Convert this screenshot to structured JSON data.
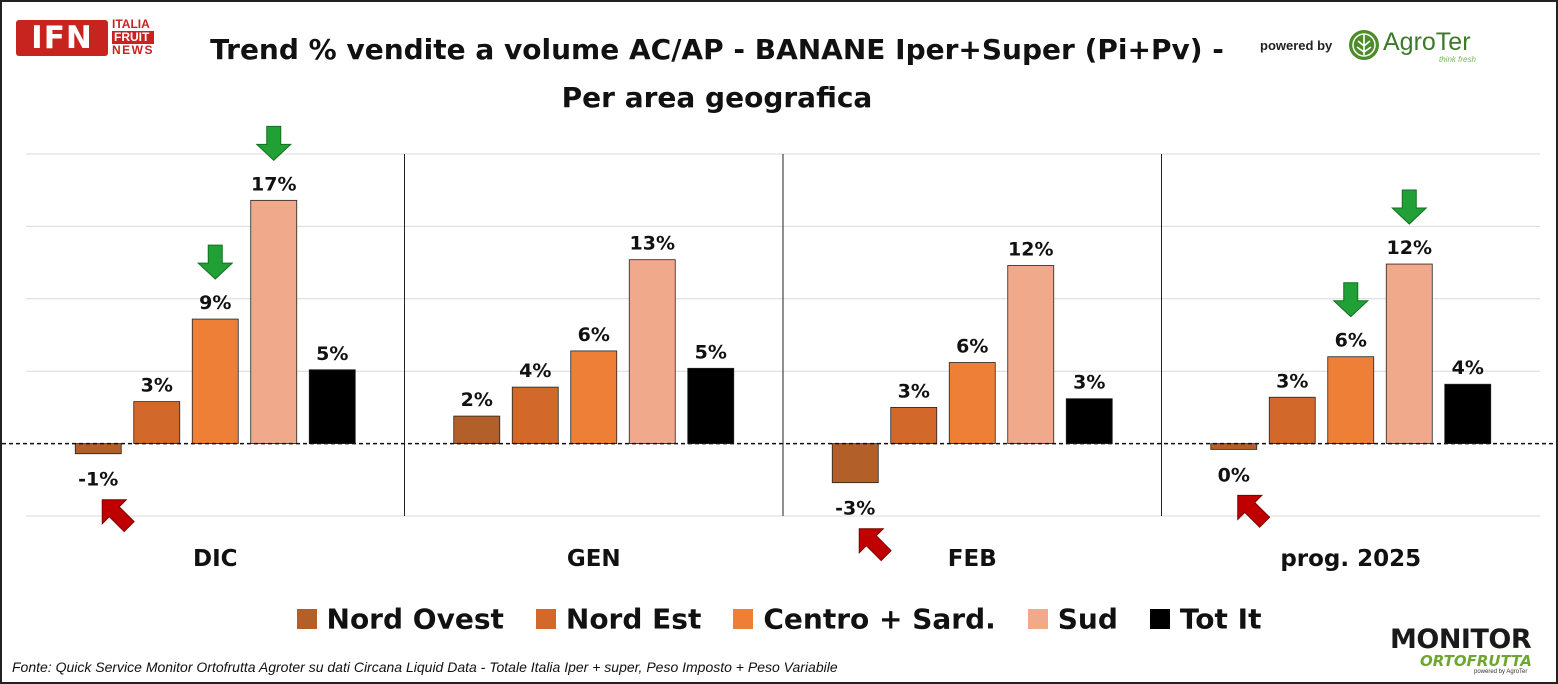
{
  "header": {
    "logo_text": "IFN",
    "logo_subtext": [
      "ITALIA",
      "FRUIT",
      "NEWS"
    ],
    "title_line1": "Trend % vendite a volume AC/AP - BANANE  Iper+Super (Pi+Pv) -",
    "title_line2": "Per area geografica",
    "powered_by": "powered by",
    "agroter_logo": "AgroTer",
    "agroter_tagline": "think fresh"
  },
  "footer": {
    "source": "Fonte: Quick Service Monitor Ortofrutta Agroter su dati Circana Liquid Data - Totale Italia Iper + super, Peso Imposto + Peso Variabile",
    "monitor_logo_line1": "MONITOR",
    "monitor_logo_line2": "ORTOFRUTTA",
    "monitor_logo_line3": "powered by AgroTer"
  },
  "colors": {
    "Nord Ovest": "#b35f29",
    "Nord Est": "#d2692b",
    "Centro + Sard.": "#ee7f37",
    "Sud": "#f0a98b",
    "Tot It": "#000000",
    "down_arrow": "#21a035",
    "up_arrow": "#c00000"
  },
  "chart_data": {
    "type": "bar",
    "title": "Trend % vendite a volume AC/AP - BANANE  Iper+Super (Pi+Pv) - Per area geografica",
    "categories": [
      "DIC",
      "GEN",
      "FEB",
      "prog. 2025"
    ],
    "series": [
      {
        "name": "Nord Ovest",
        "values": [
          -0.7,
          1.9,
          -2.7,
          -0.4
        ],
        "labels": [
          "-1%",
          "2%",
          "-3%",
          "0%"
        ]
      },
      {
        "name": "Nord Est",
        "values": [
          2.9,
          3.9,
          2.5,
          3.2
        ],
        "labels": [
          "3%",
          "4%",
          "3%",
          "3%"
        ]
      },
      {
        "name": "Centro + Sard.",
        "values": [
          8.6,
          6.4,
          5.6,
          6.0
        ],
        "labels": [
          "9%",
          "6%",
          "6%",
          "6%"
        ]
      },
      {
        "name": "Sud",
        "values": [
          16.8,
          12.7,
          12.3,
          12.4
        ],
        "labels": [
          "17%",
          "13%",
          "12%",
          "12%"
        ]
      },
      {
        "name": "Tot It",
        "values": [
          5.1,
          5.2,
          3.1,
          4.1
        ],
        "labels": [
          "5%",
          "5%",
          "3%",
          "4%"
        ]
      }
    ],
    "ylim": [
      -5,
      20
    ],
    "grid": true,
    "legend_position": "bottom",
    "arrows": [
      {
        "category": "DIC",
        "series": "Nord Ovest",
        "direction": "up"
      },
      {
        "category": "DIC",
        "series": "Centro + Sard.",
        "direction": "down"
      },
      {
        "category": "DIC",
        "series": "Sud",
        "direction": "down"
      },
      {
        "category": "FEB",
        "series": "Nord Ovest",
        "direction": "up"
      },
      {
        "category": "prog. 2025",
        "series": "Nord Ovest",
        "direction": "up"
      },
      {
        "category": "prog. 2025",
        "series": "Centro + Sard.",
        "direction": "down"
      },
      {
        "category": "prog. 2025",
        "series": "Sud",
        "direction": "down"
      }
    ]
  }
}
